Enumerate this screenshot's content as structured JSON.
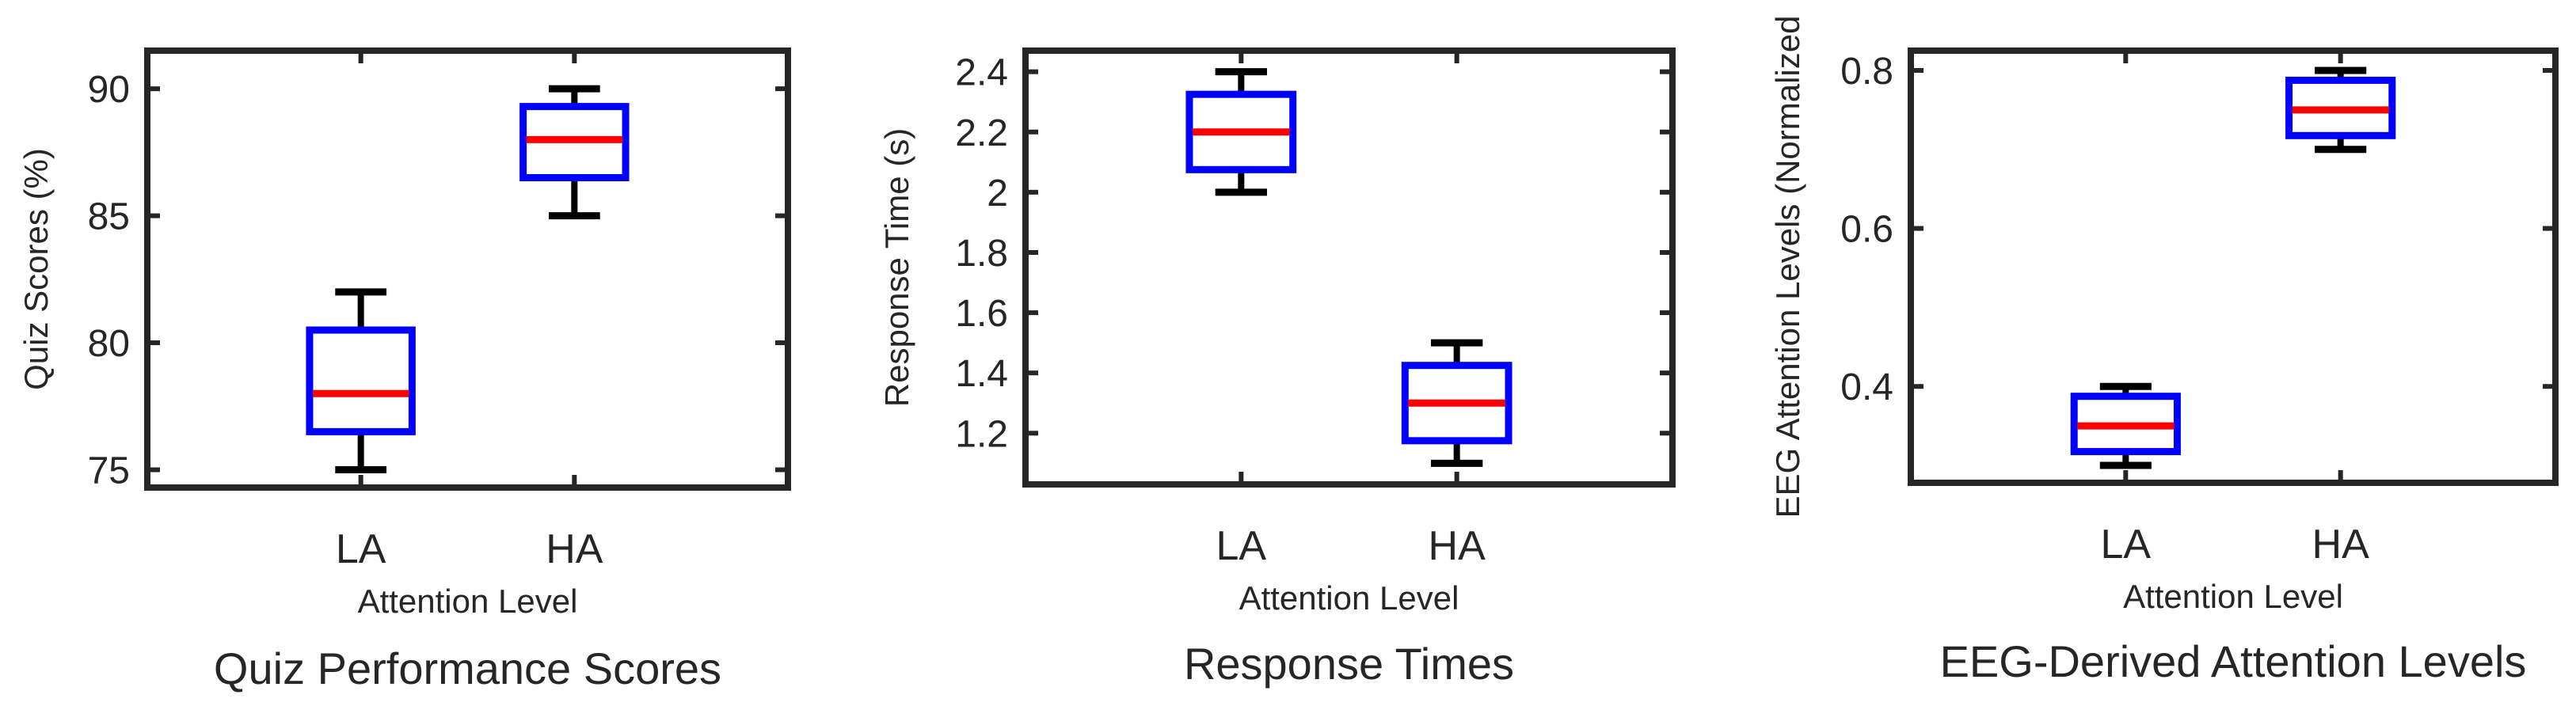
{
  "chart_data": [
    {
      "type": "box",
      "title": "Quiz Performance Scores",
      "xlabel": "Attention Level",
      "ylabel": "Quiz Scores (%)",
      "categories": [
        "LA",
        "HA"
      ],
      "ylim": [
        74.3,
        91.5
      ],
      "yticks": [
        75,
        80,
        85,
        90
      ],
      "ytick_labels": [
        "75",
        "80",
        "85",
        "90"
      ],
      "boxes": [
        {
          "category": "LA",
          "whisker_low": 75,
          "q1": 76.5,
          "median": 78,
          "q3": 80.5,
          "whisker_high": 82
        },
        {
          "category": "HA",
          "whisker_low": 85,
          "q1": 86.5,
          "median": 88,
          "q3": 89.3,
          "whisker_high": 90
        }
      ],
      "grid": false,
      "box_color": "#0000ff",
      "median_color": "#ff0000",
      "whisker_color": "#000000"
    },
    {
      "type": "box",
      "title": "Response Times",
      "xlabel": "Attention Level",
      "ylabel": "Response Time (s)",
      "categories": [
        "LA",
        "HA"
      ],
      "ylim": [
        1.03,
        2.47
      ],
      "yticks": [
        1.2,
        1.4,
        1.6,
        1.8,
        2.0,
        2.2,
        2.4
      ],
      "ytick_labels": [
        "1.2",
        "1.4",
        "1.6",
        "1.8",
        "2",
        "2.2",
        "2.4"
      ],
      "boxes": [
        {
          "category": "LA",
          "whisker_low": 2.0,
          "q1": 2.075,
          "median": 2.2,
          "q3": 2.325,
          "whisker_high": 2.4
        },
        {
          "category": "HA",
          "whisker_low": 1.1,
          "q1": 1.175,
          "median": 1.3,
          "q3": 1.425,
          "whisker_high": 1.5
        }
      ],
      "grid": false,
      "box_color": "#0000ff",
      "median_color": "#ff0000",
      "whisker_color": "#000000"
    },
    {
      "type": "box",
      "title": "EEG-Derived Attention Levels",
      "xlabel": "Attention Level",
      "ylabel": "EEG Attention Levels (Normalized",
      "categories": [
        "LA",
        "HA"
      ],
      "ylim": [
        0.278,
        0.825
      ],
      "yticks": [
        0.4,
        0.6,
        0.8
      ],
      "ytick_labels": [
        "0.4",
        "0.6",
        "0.8"
      ],
      "boxes": [
        {
          "category": "LA",
          "whisker_low": 0.3,
          "q1": 0.3175,
          "median": 0.35,
          "q3": 0.3875,
          "whisker_high": 0.4
        },
        {
          "category": "HA",
          "whisker_low": 0.7,
          "q1": 0.7175,
          "median": 0.75,
          "q3": 0.7875,
          "whisker_high": 0.8
        }
      ],
      "grid": false,
      "box_color": "#0000ff",
      "median_color": "#ff0000",
      "whisker_color": "#000000"
    }
  ]
}
